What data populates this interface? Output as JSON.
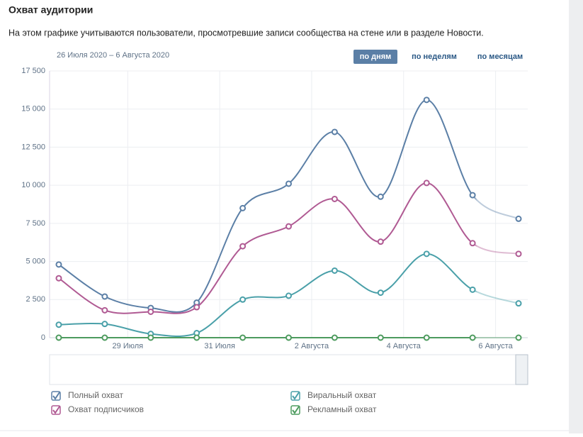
{
  "header": {
    "title": "Охват аудитории",
    "subtitle": "На этом графике учитываются пользователи, просмотревшие записи сообщества на стене или в разделе Новости.",
    "date_range": "26 Июля 2020 – 6 Августа 2020",
    "buttons": [
      "по дням",
      "по неделям",
      "по месяцам"
    ]
  },
  "chart_data": {
    "type": "line",
    "x": [
      0,
      1,
      2,
      3,
      4,
      5,
      6,
      7,
      8,
      9,
      10
    ],
    "xlim": [
      -0.2,
      10.2
    ],
    "xticks": [
      {
        "value": 1.5,
        "label": "29 Июля"
      },
      {
        "value": 3.5,
        "label": "31 Июля"
      },
      {
        "value": 5.5,
        "label": "2 Августа"
      },
      {
        "value": 7.5,
        "label": "4 Августа"
      },
      {
        "value": 9.5,
        "label": "6 Августа"
      }
    ],
    "ylim": [
      0,
      17500
    ],
    "yticks": [
      0,
      {
        "value": 2500,
        "label": "2 500"
      },
      {
        "value": 5000,
        "label": "5 000"
      },
      {
        "value": 7500,
        "label": "7 500"
      },
      {
        "value": 10000,
        "label": "10 000"
      },
      {
        "value": 12500,
        "label": "12 500"
      },
      {
        "value": 15000,
        "label": "15 000"
      },
      {
        "value": 17500,
        "label": "17 500"
      }
    ],
    "grid": true,
    "series": [
      {
        "name": "Полный охват",
        "color": "#5b7fa6",
        "values": [
          4800,
          2700,
          1950,
          2300,
          8500,
          10100,
          13500,
          9250,
          15600,
          9350,
          7800
        ]
      },
      {
        "name": "Охват подписчиков",
        "color": "#b05a93",
        "values": [
          3900,
          1800,
          1700,
          2000,
          6000,
          7300,
          9100,
          6300,
          10150,
          6200,
          5500
        ]
      },
      {
        "name": "Виральный охват",
        "color": "#4aa0a9",
        "values": [
          850,
          900,
          250,
          300,
          2500,
          2750,
          4400,
          2950,
          5500,
          3150,
          2250
        ]
      },
      {
        "name": "Рекламный охват",
        "color": "#4d9b5e",
        "values": [
          0,
          0,
          0,
          0,
          0,
          0,
          0,
          0,
          0,
          0,
          0
        ]
      }
    ]
  }
}
